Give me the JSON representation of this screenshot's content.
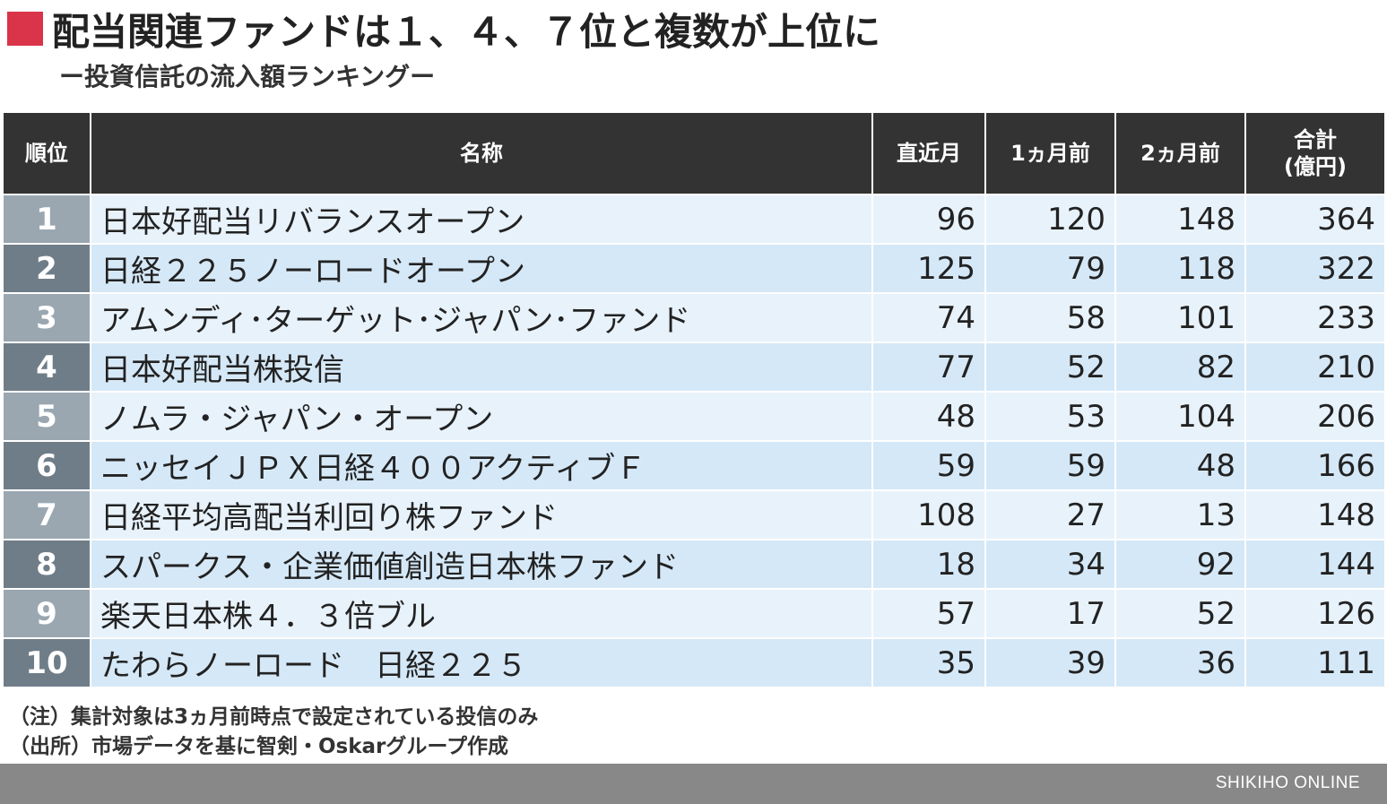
{
  "title": "配当関連ファンドは１、４、７位と複数が上位に",
  "subtitle": "ー投資信託の流入額ランキングー",
  "colors": {
    "marker": "#d9344a",
    "header_bg": "#333333",
    "rank_odd": "#9aa7b1",
    "rank_even": "#6f7d88",
    "row_odd": "#e8f2fb",
    "row_even": "#d5e8f7",
    "footer": "#888888"
  },
  "chart_data": {
    "type": "table",
    "columns": [
      "順位",
      "名称",
      "直近月",
      "1ヵ月前",
      "2ヵ月前",
      "合計\n(億円)"
    ],
    "rows": [
      {
        "rank": "1",
        "name": "日本好配当リバランスオープン",
        "latest": 96,
        "m1": 120,
        "m2": 148,
        "total": 364
      },
      {
        "rank": "2",
        "name": "日経２２５ノーロードオープン",
        "latest": 125,
        "m1": 79,
        "m2": 118,
        "total": 322
      },
      {
        "rank": "3",
        "name": "アムンディ･ターゲット･ジャパン･ファンド",
        "latest": 74,
        "m1": 58,
        "m2": 101,
        "total": 233
      },
      {
        "rank": "4",
        "name": "日本好配当株投信",
        "latest": 77,
        "m1": 52,
        "m2": 82,
        "total": 210
      },
      {
        "rank": "5",
        "name": "ノムラ・ジャパン・オープン",
        "latest": 48,
        "m1": 53,
        "m2": 104,
        "total": 206
      },
      {
        "rank": "6",
        "name": "ニッセイＪＰＸ日経４００アクティブＦ",
        "latest": 59,
        "m1": 59,
        "m2": 48,
        "total": 166
      },
      {
        "rank": "7",
        "name": "日経平均高配当利回り株ファンド",
        "latest": 108,
        "m1": 27,
        "m2": 13,
        "total": 148
      },
      {
        "rank": "8",
        "name": "スパークス・企業価値創造日本株ファンド",
        "latest": 18,
        "m1": 34,
        "m2": 92,
        "total": 144
      },
      {
        "rank": "9",
        "name": "楽天日本株４．３倍ブル",
        "latest": 57,
        "m1": 17,
        "m2": 52,
        "total": 126
      },
      {
        "rank": "10",
        "name": "たわらノーロード　日経２２５",
        "latest": 35,
        "m1": 39,
        "m2": 36,
        "total": 111
      }
    ]
  },
  "notes": [
    "（注）集計対象は3ヵ月前時点で設定されている投信のみ",
    "（出所）市場データを基に智剣・Oskarグループ作成"
  ],
  "brand": "SHIKIHO ONLINE"
}
